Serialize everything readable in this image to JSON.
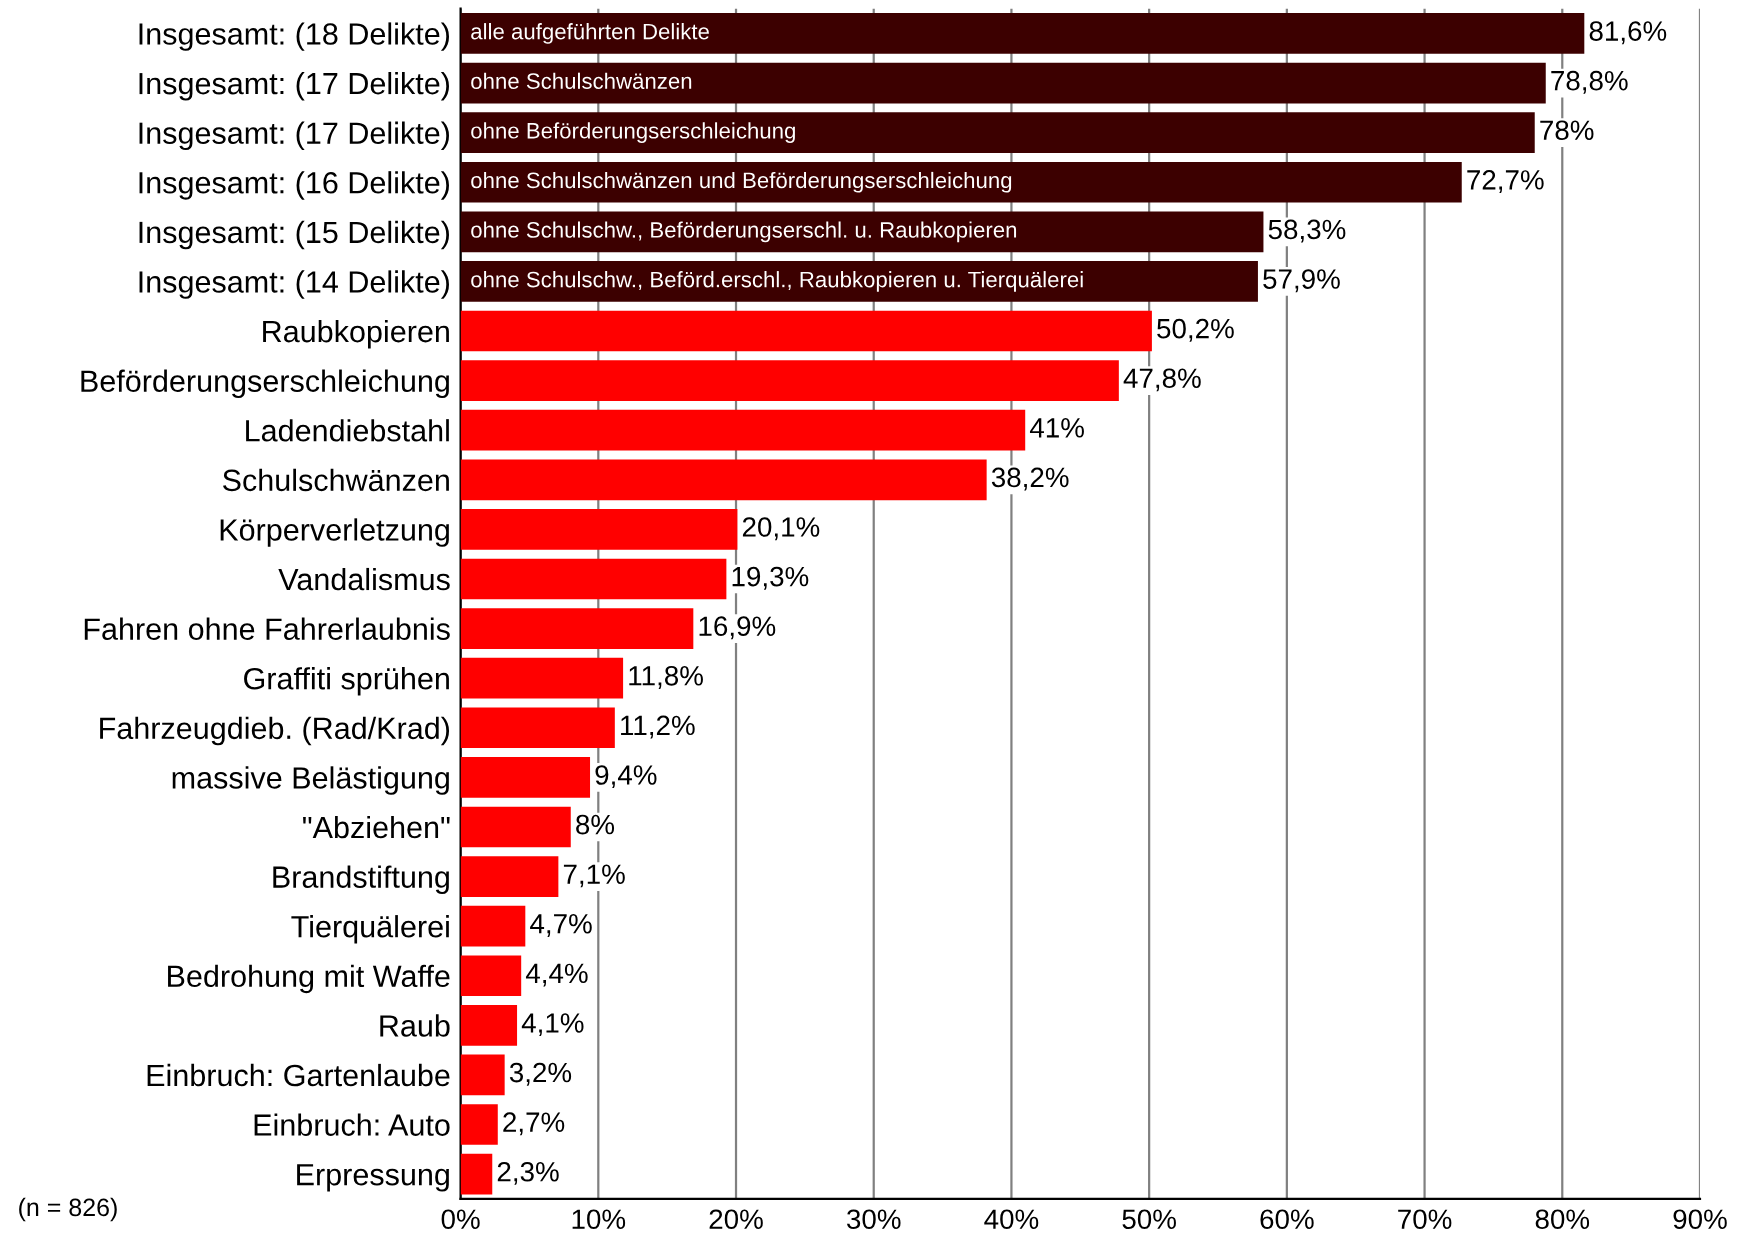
{
  "chart_data": {
    "type": "bar",
    "orientation": "horizontal",
    "categories": [
      "Insgesamt: (18 Delikte)",
      "Insgesamt: (17 Delikte)",
      "Insgesamt: (17 Delikte)",
      "Insgesamt: (16 Delikte)",
      "Insgesamt: (15 Delikte)",
      "Insgesamt: (14 Delikte)",
      "Raubkopieren",
      "Beförderungserschleichung",
      "Ladendiebstahl",
      "Schulschwänzen",
      "Körperverletzung",
      "Vandalismus",
      "Fahren ohne Fahrerlaubnis",
      "Graffiti sprühen",
      "Fahrzeugdieb. (Rad/Krad)",
      "massive Belästigung",
      "\"Abziehen\"",
      "Brandstiftung",
      "Tierquälerei",
      "Bedrohung mit Waffe",
      "Raub",
      "Einbruch: Gartenlaube",
      "Einbruch: Auto",
      "Erpressung"
    ],
    "values": [
      81.6,
      78.8,
      78,
      72.7,
      58.3,
      57.9,
      50.2,
      47.8,
      41,
      38.2,
      20.1,
      19.3,
      16.9,
      11.8,
      11.2,
      9.4,
      8,
      7.1,
      4.7,
      4.4,
      4.1,
      3.2,
      2.7,
      2.3
    ],
    "value_labels": [
      "81,6%",
      "78,8%",
      "78%",
      "72,7%",
      "58,3%",
      "57,9%",
      "50,2%",
      "47,8%",
      "41%",
      "38,2%",
      "20,1%",
      "19,3%",
      "16,9%",
      "11,8%",
      "11,2%",
      "9,4%",
      "8%",
      "7,1%",
      "4,7%",
      "4,4%",
      "4,1%",
      "3,2%",
      "2,7%",
      "2,3%"
    ],
    "colors": [
      "#3c0000",
      "#3c0000",
      "#3c0000",
      "#3c0000",
      "#3c0000",
      "#3c0000",
      "#ff0000",
      "#ff0000",
      "#ff0000",
      "#ff0000",
      "#ff0000",
      "#ff0000",
      "#ff0000",
      "#ff0000",
      "#ff0000",
      "#ff0000",
      "#ff0000",
      "#ff0000",
      "#ff0000",
      "#ff0000",
      "#ff0000",
      "#ff0000",
      "#ff0000",
      "#ff0000"
    ],
    "xlim": [
      0,
      90
    ],
    "xticks": [
      {
        "value": 0,
        "label": "0%"
      },
      {
        "value": 10,
        "label": "10%"
      },
      {
        "value": 20,
        "label": "20%"
      },
      {
        "value": 30,
        "label": "30%"
      },
      {
        "value": 40,
        "label": "40%"
      },
      {
        "value": 50,
        "label": "50%"
      },
      {
        "value": 60,
        "label": "60%"
      },
      {
        "value": 70,
        "label": "70%"
      },
      {
        "value": 80,
        "label": "80%"
      },
      {
        "value": 90,
        "label": "90%"
      }
    ],
    "grid": "x",
    "legend": false,
    "annotations": [
      {
        "text": "alle aufgeführten Delikte",
        "y": "Insgesamt: (18 Delikte)"
      },
      {
        "text": "ohne Schulschwänzen",
        "y": "Insgesamt: (17 Delikte)"
      },
      {
        "text": "ohne Beförderungserschleichung",
        "y": "Insgesamt: (17 Delikte)"
      },
      {
        "text": "ohne Schulschwänzen und Beförderungserschleichung",
        "y": "Insgesamt: (16 Delikte)"
      },
      {
        "text": "ohne Schulschw., Beförderungserschl. u. Raubkopieren",
        "y": "Insgesamt: (15 Delikte)"
      },
      {
        "text": "ohne Schulschw., Beförd.erschl., Raubkopieren u. Tierquälerei",
        "y": "Insgesamt: (14 Delikte)"
      },
      "(n = 826)"
    ]
  }
}
